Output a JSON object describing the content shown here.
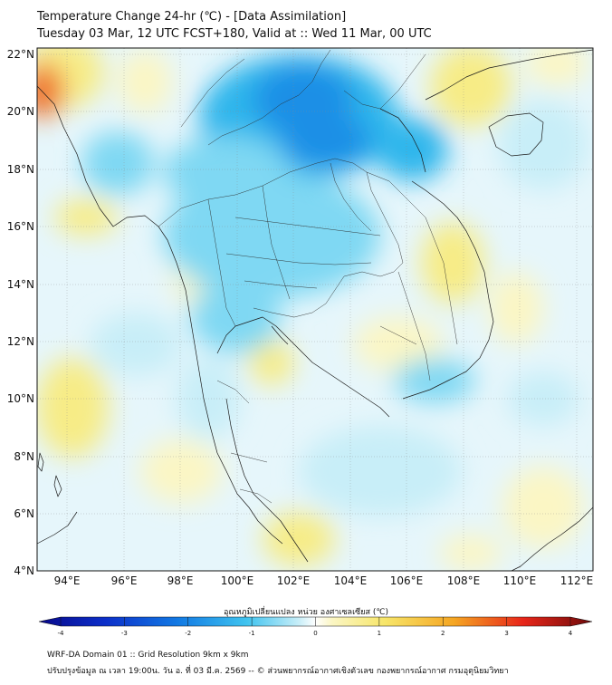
{
  "header": {
    "title_line1": "Temperature Change 24-hr (℃) - [Data Assimilation]",
    "title_line2": "Tuesday 03 Mar, 12 UTC FCST+180, Valid at :: Wed 11 Mar, 00 UTC"
  },
  "map": {
    "lat_labels": [
      "22°N",
      "20°N",
      "18°N",
      "16°N",
      "14°N",
      "12°N",
      "10°N",
      "8°N",
      "6°N",
      "4°N"
    ],
    "lon_labels": [
      "94°E",
      "96°E",
      "98°E",
      "100°E",
      "102°E",
      "104°E",
      "106°E",
      "108°E",
      "110°E",
      "112°E"
    ],
    "lat_range": [
      4,
      22.2
    ],
    "lon_range": [
      93,
      112.6
    ],
    "colors": {
      "ocean_land_neutral": "#f4fbfd",
      "light_cyan": "#c8eef8",
      "cyan": "#7fd8f3",
      "deep_cyan": "#2fb6ec",
      "blue": "#1a8fe6",
      "deep_blue": "#1260d6",
      "light_yellow": "#fbf6c4",
      "yellow": "#f7ec86",
      "orange": "#f5a623",
      "red_orange": "#ef6a1d"
    }
  },
  "colorbar": {
    "title": "อุณหภูมิเปลี่ยนแปลง หน่วย องศาเซลเซียส (℃)",
    "min": -4,
    "max": 4,
    "ticks": [
      "-4",
      "-3",
      "-2",
      "-1",
      "0",
      "1",
      "2",
      "3",
      "4"
    ]
  },
  "footer": {
    "line1": "WRF-DA Domain 01 :: Grid Resolution 9km x 9km",
    "line2": "ปรับปรุงข้อมูล ณ เวลา 19:00น. วัน อ. ที่ 03 มี.ค. 2569 -- © ส่วนพยากรณ์อากาศเชิงตัวเลข กองพยากรณ์อากาศ กรมอุตุนิยมวิทยา"
  }
}
